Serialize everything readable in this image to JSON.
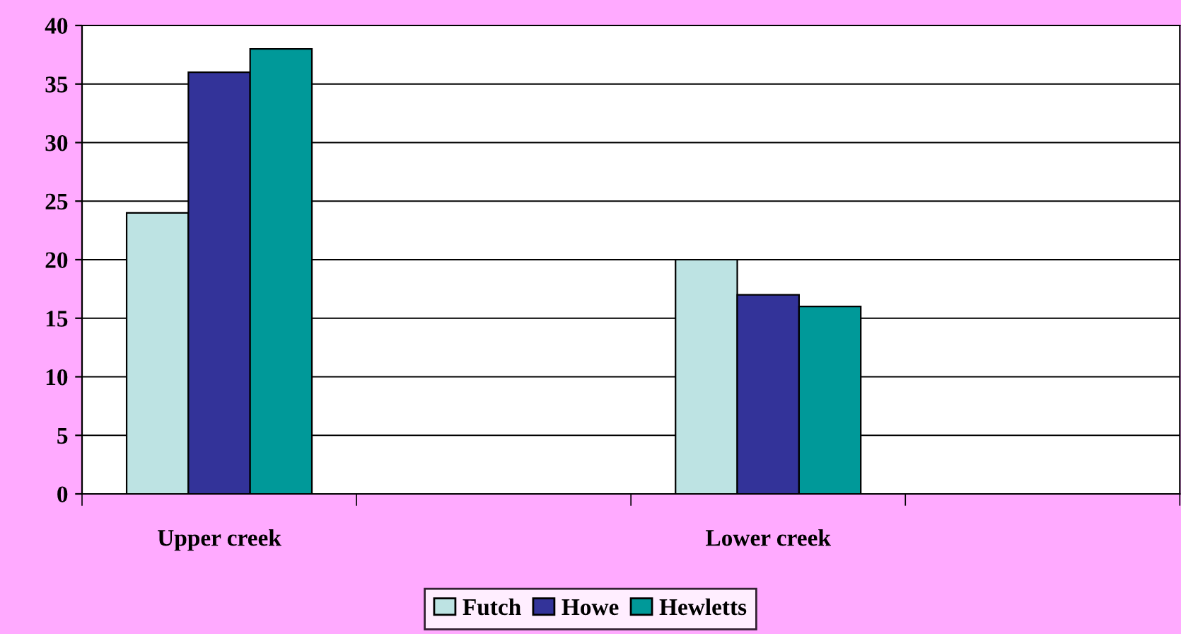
{
  "chart_data": {
    "type": "bar",
    "categories": [
      "Upper creek",
      null,
      "Lower creek",
      null
    ],
    "series": [
      {
        "name": "Futch",
        "color": "#bde3e3",
        "values": [
          24,
          null,
          20,
          null
        ]
      },
      {
        "name": "Howe",
        "color": "#333399",
        "values": [
          36,
          null,
          17,
          null
        ]
      },
      {
        "name": "Hewletts",
        "color": "#009999",
        "values": [
          38,
          null,
          16,
          null
        ]
      }
    ],
    "ylim": [
      0,
      40
    ],
    "yticks": [
      0,
      5,
      10,
      15,
      20,
      25,
      30,
      35,
      40
    ],
    "grid": "y",
    "legend": "bottom"
  }
}
